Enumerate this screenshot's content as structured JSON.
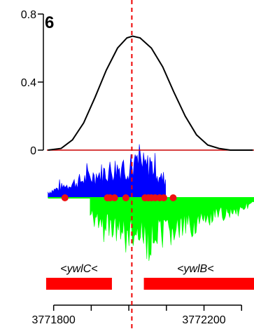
{
  "chart_data": {
    "type": "line",
    "panel_label": "6",
    "y_axis": {
      "ticks": [
        0,
        0.4,
        0.8
      ],
      "tick_labels": [
        "0",
        "0.4",
        "0.8"
      ],
      "ylim": [
        0,
        0.8
      ]
    },
    "x_axis": {
      "ticks": [
        3771800,
        3771900,
        3772000,
        3772100,
        3772200,
        3772300
      ],
      "labeled_ticks": [
        3771800,
        3772200
      ],
      "tick_labels": [
        "3771800",
        "3772200"
      ],
      "xlim": [
        3771782,
        3772333
      ]
    },
    "bell_curve": {
      "x": [
        3771785,
        3771820,
        3771850,
        3771880,
        3771910,
        3771940,
        3771970,
        3771995,
        3772010,
        3772030,
        3772060,
        3772090,
        3772120,
        3772150,
        3772180,
        3772210,
        3772240,
        3772270,
        3772300,
        3772330
      ],
      "y": [
        0,
        0.01,
        0.06,
        0.16,
        0.31,
        0.47,
        0.6,
        0.66,
        0.67,
        0.66,
        0.6,
        0.49,
        0.34,
        0.2,
        0.09,
        0.03,
        0.01,
        0,
        0,
        0
      ]
    },
    "cursor_line_x": 3772008,
    "blue_signal_range": [
      3771785,
      3772098
    ],
    "green_signal_range": [
      3771897,
      3772333
    ],
    "red_dots_x": [
      3771830,
      3771943,
      3771950,
      3771962,
      3771992,
      3772043,
      3772052,
      3772060,
      3772070,
      3772082,
      3772093,
      3772118
    ],
    "genes": [
      {
        "label": "<ywlC<",
        "start": 3771780,
        "end": 3771955
      },
      {
        "label": "<ywlB<",
        "start": 3772040,
        "end": 3772333
      }
    ],
    "colors": {
      "curve": "#000000",
      "zero_line": "#cc0000",
      "cursor": "#ee0000",
      "dots": "#ee1111",
      "blue": "#0000ff",
      "green": "#00ff00",
      "gene": "#ff0000"
    }
  }
}
